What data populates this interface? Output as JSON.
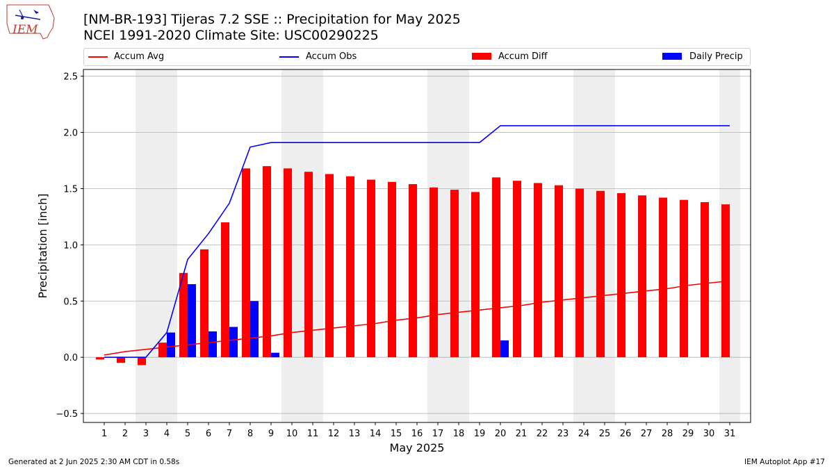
{
  "header": {
    "title_line1": "[NM-BR-193] Tijeras 7.2 SSE :: Precipitation for May 2025",
    "title_line2": "NCEI 1991-2020 Climate Site: USC00290225",
    "logo_text": "IEM"
  },
  "legend": {
    "accum_avg": "Accum Avg",
    "accum_obs": "Accum Obs",
    "accum_diff": "Accum Diff",
    "daily_precip": "Daily Precip"
  },
  "footer": {
    "generated": "Generated at 2 Jun 2025 2:30 AM CDT in 0.58s",
    "app": "IEM Autoplot App #17"
  },
  "colors": {
    "avg": "#ff0000",
    "obs": "#0000ff",
    "diff": "#ff0000",
    "daily": "#0000ff",
    "weekend_shade": "#eeeeee",
    "grid": "#b0b0b0"
  },
  "chart_data": {
    "type": "bar",
    "xlabel": "May 2025",
    "ylabel": "Precipitation [inch]",
    "ylim": [
      -0.58,
      2.56
    ],
    "yticks": [
      -0.5,
      0.0,
      0.5,
      1.0,
      1.5,
      2.0,
      2.5
    ],
    "ytick_labels": [
      "−0.5",
      "0.0",
      "0.5",
      "1.0",
      "1.5",
      "2.0",
      "2.5"
    ],
    "grid": "horizontal",
    "legend_position": "top",
    "weekend_days": [
      3,
      4,
      10,
      11,
      17,
      18,
      24,
      25,
      31
    ],
    "x": [
      1,
      2,
      3,
      4,
      5,
      6,
      7,
      8,
      9,
      10,
      11,
      12,
      13,
      14,
      15,
      16,
      17,
      18,
      19,
      20,
      21,
      22,
      23,
      24,
      25,
      26,
      27,
      28,
      29,
      30,
      31
    ],
    "series": [
      {
        "name": "Accum Avg",
        "kind": "line",
        "values": [
          0.02,
          0.05,
          0.07,
          0.09,
          0.11,
          0.13,
          0.15,
          0.17,
          0.19,
          0.22,
          0.24,
          0.26,
          0.28,
          0.3,
          0.33,
          0.35,
          0.38,
          0.4,
          0.42,
          0.44,
          0.46,
          0.49,
          0.51,
          0.53,
          0.55,
          0.57,
          0.59,
          0.61,
          0.64,
          0.66,
          0.68
        ]
      },
      {
        "name": "Accum Obs",
        "kind": "line",
        "values": [
          0.0,
          0.0,
          0.0,
          0.22,
          0.87,
          1.1,
          1.37,
          1.87,
          1.91,
          1.91,
          1.91,
          1.91,
          1.91,
          1.91,
          1.91,
          1.91,
          1.91,
          1.91,
          1.91,
          2.06,
          2.06,
          2.06,
          2.06,
          2.06,
          2.06,
          2.06,
          2.06,
          2.06,
          2.06,
          2.06,
          2.06
        ]
      },
      {
        "name": "Accum Diff",
        "kind": "bar",
        "values": [
          -0.02,
          -0.05,
          -0.07,
          0.13,
          0.75,
          0.96,
          1.2,
          1.68,
          1.7,
          1.68,
          1.65,
          1.63,
          1.61,
          1.58,
          1.56,
          1.54,
          1.51,
          1.49,
          1.47,
          1.6,
          1.57,
          1.55,
          1.53,
          1.5,
          1.48,
          1.46,
          1.44,
          1.42,
          1.4,
          1.38,
          1.36
        ]
      },
      {
        "name": "Daily Precip",
        "kind": "bar",
        "values": [
          0.0,
          0.0,
          0.0,
          0.22,
          0.65,
          0.23,
          0.27,
          0.5,
          0.04,
          0.0,
          0.0,
          0.0,
          0.0,
          0.0,
          0.0,
          0.0,
          0.0,
          0.0,
          0.0,
          0.15,
          0.0,
          0.0,
          0.0,
          0.0,
          0.0,
          0.0,
          0.0,
          0.0,
          0.0,
          0.0,
          0.0
        ]
      }
    ]
  }
}
